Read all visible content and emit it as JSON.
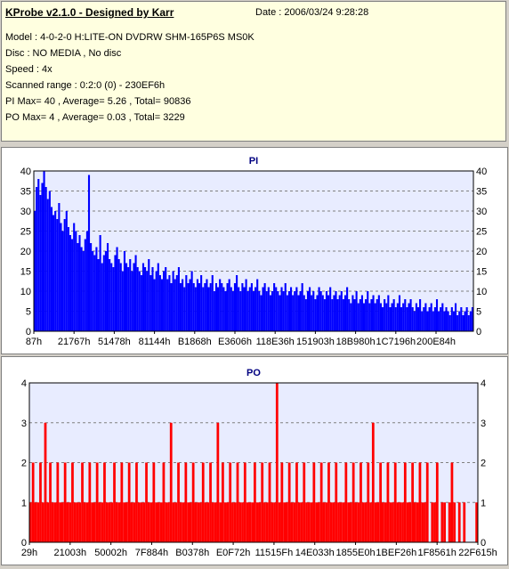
{
  "header": {
    "title": "KProbe v2.1.0 - Designed by Karr",
    "date": "Date : 2006/03/24 9:28:28",
    "lines": [
      "Model : 4-0-2-0 H:LITE-ON DVDRW SHM-165P6S MS0K",
      "Disc : NO MEDIA , No disc",
      "Speed : 4x",
      "Scanned range : 0:2:0 (0) - 230EF6h",
      "PI Max= 40 , Average= 5.26 , Total= 90836",
      "PO Max= 4 , Average= 0.03 , Total= 3229"
    ]
  },
  "chart_data": [
    {
      "type": "bar",
      "title": "PI",
      "ylim": [
        0,
        40
      ],
      "yticks": [
        0,
        5,
        10,
        15,
        20,
        25,
        30,
        35,
        40
      ],
      "x_tick_labels": [
        "87h",
        "21767h",
        "51478h",
        "81144h",
        "B1868h",
        "E3606h",
        "118E36h",
        "151903h",
        "18B980h",
        "1C7196h",
        "200E84h"
      ],
      "color": "#0000ff",
      "series": [
        {
          "values": [
            30,
            36,
            38,
            34,
            37,
            40,
            36,
            33,
            35,
            31,
            29,
            30,
            28,
            32,
            27,
            25,
            28,
            30,
            26,
            24,
            23,
            27,
            25,
            22,
            24,
            21,
            20,
            23,
            25,
            39,
            22,
            20,
            19,
            21,
            18,
            24,
            17,
            19,
            20,
            22,
            18,
            17,
            16,
            19,
            21,
            18,
            17,
            15,
            20,
            17,
            16,
            18,
            15,
            17,
            19,
            16,
            15,
            14,
            17,
            16,
            15,
            18,
            14,
            16,
            13,
            15,
            17,
            14,
            13,
            15,
            16,
            13,
            14,
            12,
            15,
            13,
            14,
            16,
            12,
            13,
            11,
            14,
            12,
            13,
            15,
            12,
            11,
            13,
            12,
            14,
            11,
            12,
            13,
            11,
            12,
            14,
            10,
            12,
            11,
            13,
            12,
            11,
            10,
            12,
            13,
            11,
            10,
            12,
            14,
            11,
            10,
            12,
            11,
            13,
            10,
            11,
            12,
            10,
            11,
            13,
            10,
            9,
            11,
            12,
            10,
            11,
            9,
            10,
            12,
            11,
            10,
            9,
            11,
            10,
            12,
            9,
            10,
            11,
            9,
            10,
            11,
            9,
            10,
            12,
            9,
            8,
            10,
            11,
            9,
            10,
            8,
            9,
            11,
            10,
            9,
            8,
            10,
            9,
            11,
            8,
            9,
            10,
            8,
            9,
            10,
            8,
            9,
            11,
            8,
            7,
            9,
            8,
            10,
            7,
            8,
            9,
            7,
            8,
            10,
            7,
            8,
            9,
            7,
            8,
            9,
            7,
            6,
            8,
            7,
            9,
            6,
            7,
            8,
            6,
            7,
            9,
            6,
            7,
            8,
            6,
            7,
            8,
            6,
            5,
            7,
            6,
            8,
            5,
            6,
            7,
            5,
            6,
            7,
            5,
            6,
            8,
            5,
            6,
            7,
            5,
            6,
            5,
            4,
            6,
            5,
            7,
            4,
            5,
            6,
            4,
            5,
            6,
            4,
            5,
            6
          ]
        }
      ]
    },
    {
      "type": "bar",
      "title": "PO",
      "ylim": [
        0,
        4
      ],
      "yticks": [
        0,
        1,
        2,
        3,
        4
      ],
      "x_tick_labels": [
        "29h",
        "21003h",
        "50002h",
        "7F884h",
        "B0378h",
        "E0F72h",
        "11515Fh",
        "14E033h",
        "1855E0h",
        "1BEF26h",
        "1F8561h",
        "22F615h"
      ],
      "color": "#ff0000",
      "series": [
        {
          "values": [
            1,
            2,
            1,
            1,
            2,
            1,
            3,
            1,
            2,
            1,
            1,
            2,
            1,
            1,
            2,
            1,
            1,
            2,
            1,
            1,
            1,
            2,
            1,
            1,
            2,
            1,
            1,
            2,
            1,
            1,
            2,
            1,
            1,
            1,
            2,
            1,
            1,
            2,
            1,
            1,
            2,
            1,
            1,
            2,
            1,
            1,
            1,
            2,
            1,
            1,
            2,
            1,
            1,
            1,
            2,
            1,
            1,
            3,
            1,
            1,
            2,
            1,
            1,
            2,
            1,
            1,
            2,
            1,
            1,
            1,
            2,
            1,
            1,
            2,
            1,
            1,
            3,
            1,
            2,
            1,
            1,
            2,
            1,
            1,
            2,
            1,
            1,
            2,
            1,
            1,
            1,
            2,
            1,
            1,
            2,
            1,
            1,
            2,
            1,
            1,
            4,
            1,
            2,
            1,
            1,
            2,
            1,
            1,
            2,
            1,
            1,
            2,
            1,
            1,
            1,
            2,
            1,
            1,
            2,
            1,
            1,
            2,
            1,
            1,
            2,
            1,
            1,
            1,
            2,
            1,
            1,
            2,
            1,
            1,
            2,
            1,
            1,
            2,
            1,
            3,
            1,
            1,
            2,
            1,
            1,
            2,
            1,
            1,
            2,
            1,
            1,
            1,
            2,
            1,
            1,
            2,
            1,
            1,
            2,
            1,
            1,
            2,
            0,
            1,
            1,
            2,
            0,
            1,
            1,
            0,
            1,
            2,
            1,
            0,
            1,
            0,
            1,
            0,
            0,
            0,
            0,
            1
          ]
        }
      ]
    }
  ]
}
